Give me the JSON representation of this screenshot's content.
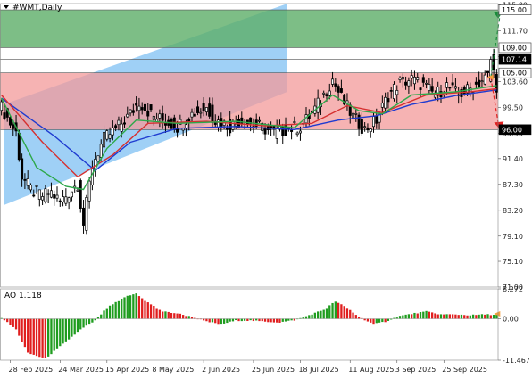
{
  "window": {
    "symbol_title": "#WMT,Daily"
  },
  "colors": {
    "up_zone": "#5cae68",
    "down_zone": "#f39a9a",
    "channel": "#8ec8f5",
    "ma_fast": "#2ea84a",
    "ma_mid": "#d63030",
    "ma_slow": "#1f3bd0",
    "ao_up": "#1f9c1f",
    "ao_down": "#e01e1e",
    "candle": "#000000",
    "arrow_up": "#1a8c3a",
    "arrow_down": "#e02020",
    "marker": "#f5a03c"
  },
  "chart_data": [
    {
      "type": "candlestick",
      "title": "#WMT,Daily",
      "ylim": [
        71.0,
        116.0
      ],
      "y_ticks": [
        "115.80",
        "111.70",
        "107.60",
        "103.60",
        "99.50",
        "95.40",
        "91.40",
        "87.30",
        "83.20",
        "79.10",
        "75.10",
        "71.00"
      ],
      "price_labels": [
        {
          "text": "115.00",
          "value": 115.0,
          "kind": "target-up"
        },
        {
          "text": "109.00",
          "value": 109.0,
          "kind": "level"
        },
        {
          "text": "107.14",
          "value": 107.14,
          "kind": "current"
        },
        {
          "text": "105.00",
          "value": 105.0,
          "kind": "level"
        },
        {
          "text": "96.00",
          "value": 96.0,
          "kind": "target-down"
        }
      ],
      "zones": [
        {
          "name": "buy-zone",
          "from": 109.0,
          "to": 115.0
        },
        {
          "name": "sell-zone",
          "from": 96.0,
          "to": 105.0
        }
      ],
      "channel": {
        "start": [
          0,
          84,
          100
        ],
        "end": [
          169,
          102,
          118
        ]
      },
      "x_labels": [
        {
          "text": "28 Feb 2025",
          "bar": 3
        },
        {
          "text": "24 Mar 2025",
          "bar": 20
        },
        {
          "text": "15 Apr 2025",
          "bar": 36
        },
        {
          "text": "8 May 2025",
          "bar": 52
        },
        {
          "text": "2 Jun 2025",
          "bar": 69
        },
        {
          "text": "25 Jun 2025",
          "bar": 86
        },
        {
          "text": "18 Jul 2025",
          "bar": 102
        },
        {
          "text": "11 Aug 2025",
          "bar": 119
        },
        {
          "text": "3 Sep 2025",
          "bar": 135
        },
        {
          "text": "25 Sep 2025",
          "bar": 151
        }
      ],
      "bars": 170,
      "close_path": [
        [
          0,
          99.5
        ],
        [
          3,
          97.0
        ],
        [
          5,
          95.5
        ],
        [
          7,
          88.5
        ],
        [
          10,
          86.5
        ],
        [
          14,
          85.5
        ],
        [
          17,
          86.0
        ],
        [
          20,
          84.5
        ],
        [
          24,
          86.5
        ],
        [
          26,
          87.5
        ],
        [
          28,
          81.0
        ],
        [
          31,
          90.5
        ],
        [
          35,
          94.5
        ],
        [
          40,
          96.5
        ],
        [
          44,
          98.5
        ],
        [
          47,
          100.5
        ],
        [
          52,
          98.0
        ],
        [
          55,
          97.5
        ],
        [
          60,
          96.5
        ],
        [
          65,
          98.5
        ],
        [
          70,
          99.5
        ],
        [
          73,
          97.5
        ],
        [
          78,
          96.5
        ],
        [
          82,
          97.5
        ],
        [
          88,
          96.5
        ],
        [
          93,
          95.5
        ],
        [
          97,
          96.0
        ],
        [
          102,
          96.5
        ],
        [
          106,
          98.5
        ],
        [
          110,
          101.5
        ],
        [
          113,
          104.0
        ],
        [
          116,
          101.0
        ],
        [
          120,
          98.0
        ],
        [
          124,
          96.0
        ],
        [
          128,
          97.5
        ],
        [
          132,
          101.5
        ],
        [
          136,
          103.5
        ],
        [
          140,
          104.0
        ],
        [
          144,
          103.0
        ],
        [
          148,
          101.5
        ],
        [
          152,
          103.0
        ],
        [
          156,
          101.5
        ],
        [
          160,
          102.5
        ],
        [
          163,
          103.5
        ],
        [
          166,
          104.5
        ],
        [
          167,
          107.14
        ],
        [
          169,
          103.0
        ]
      ],
      "ma_fast_path": [
        [
          0,
          101.0
        ],
        [
          12,
          90.0
        ],
        [
          22,
          87.0
        ],
        [
          28,
          86.5
        ],
        [
          36,
          93.0
        ],
        [
          46,
          97.5
        ],
        [
          60,
          97.0
        ],
        [
          80,
          97.3
        ],
        [
          100,
          96.3
        ],
        [
          113,
          101.5
        ],
        [
          122,
          99.0
        ],
        [
          130,
          98.5
        ],
        [
          140,
          101.5
        ],
        [
          155,
          102.0
        ],
        [
          169,
          103.0
        ]
      ],
      "ma_mid_path": [
        [
          0,
          101.5
        ],
        [
          14,
          94.0
        ],
        [
          26,
          88.5
        ],
        [
          38,
          92.0
        ],
        [
          50,
          97.0
        ],
        [
          70,
          97.3
        ],
        [
          90,
          96.6
        ],
        [
          106,
          97.0
        ],
        [
          118,
          99.8
        ],
        [
          130,
          98.7
        ],
        [
          145,
          101.5
        ],
        [
          160,
          102.0
        ],
        [
          169,
          102.5
        ]
      ],
      "ma_slow_path": [
        [
          0,
          101.0
        ],
        [
          18,
          95.0
        ],
        [
          32,
          89.5
        ],
        [
          44,
          94.0
        ],
        [
          60,
          96.2
        ],
        [
          80,
          96.5
        ],
        [
          100,
          96.0
        ],
        [
          115,
          97.5
        ],
        [
          128,
          98.2
        ],
        [
          140,
          100.0
        ],
        [
          155,
          101.4
        ],
        [
          169,
          102.3
        ]
      ]
    },
    {
      "type": "bar",
      "title": "AO 1.118",
      "indicator": "AO",
      "last_value": 1.118,
      "ylim": [
        -11.467,
        8.272
      ],
      "y_ticks": [
        "8.272",
        "0.00",
        "-11.467"
      ],
      "ao_path": [
        [
          0,
          0.3
        ],
        [
          5,
          -3.0
        ],
        [
          9,
          -9.5
        ],
        [
          15,
          -11.0
        ],
        [
          21,
          -7.0
        ],
        [
          27,
          -3.0
        ],
        [
          32,
          -0.5
        ],
        [
          36,
          3.0
        ],
        [
          42,
          6.0
        ],
        [
          46,
          7.0
        ],
        [
          50,
          4.5
        ],
        [
          55,
          2.0
        ],
        [
          60,
          1.5
        ],
        [
          65,
          0.5
        ],
        [
          70,
          -0.8
        ],
        [
          75,
          -1.5
        ],
        [
          80,
          -0.5
        ],
        [
          85,
          -0.5
        ],
        [
          90,
          -0.8
        ],
        [
          95,
          -1.0
        ],
        [
          100,
          -0.4
        ],
        [
          105,
          1.0
        ],
        [
          110,
          2.5
        ],
        [
          114,
          4.8
        ],
        [
          118,
          3.0
        ],
        [
          122,
          0.5
        ],
        [
          127,
          -1.5
        ],
        [
          131,
          -0.8
        ],
        [
          136,
          0.8
        ],
        [
          141,
          1.5
        ],
        [
          145,
          2.0
        ],
        [
          150,
          1.2
        ],
        [
          155,
          1.2
        ],
        [
          160,
          1.0
        ],
        [
          165,
          1.2
        ],
        [
          169,
          1.118
        ]
      ]
    }
  ]
}
